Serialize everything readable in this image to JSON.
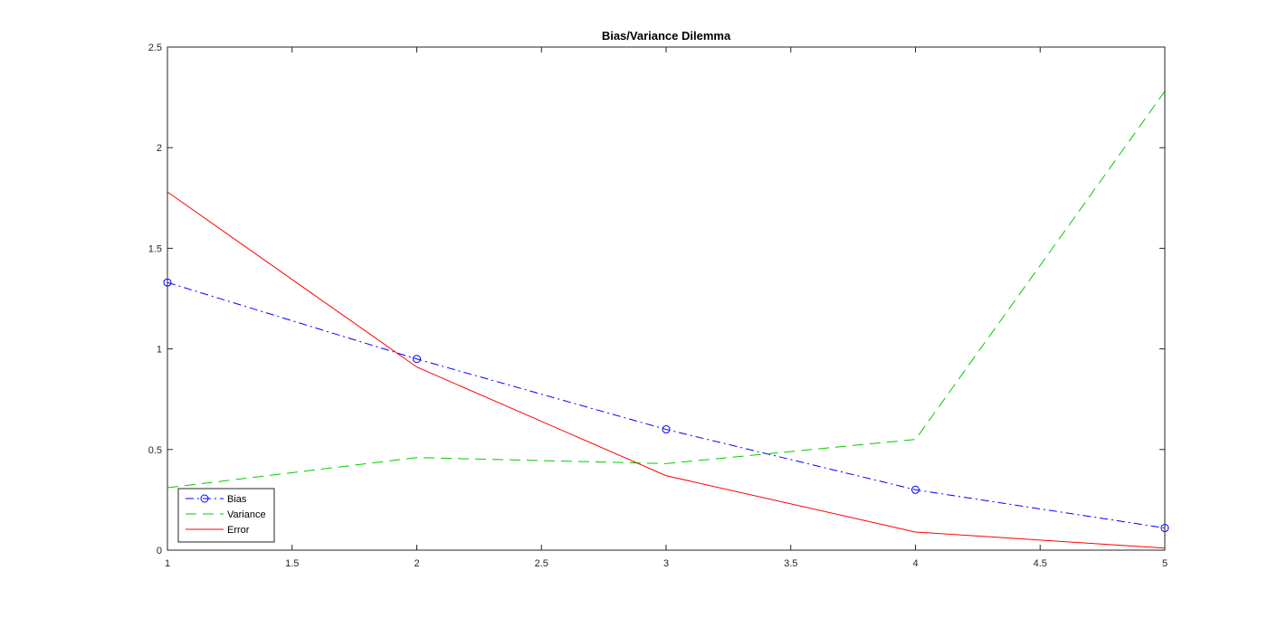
{
  "chart_data": {
    "type": "line",
    "title": "Bias/Variance Dilemma",
    "xlabel": "",
    "ylabel": "",
    "xlim": [
      1,
      5
    ],
    "ylim": [
      0,
      2.5
    ],
    "x_ticks": [
      1,
      1.5,
      2,
      2.5,
      3,
      3.5,
      4,
      4.5,
      5
    ],
    "x_tick_labels": [
      "1",
      "1.5",
      "2",
      "2.5",
      "3",
      "3.5",
      "4",
      "4.5",
      "5"
    ],
    "y_ticks": [
      0,
      0.5,
      1,
      1.5,
      2,
      2.5
    ],
    "y_tick_labels": [
      "0",
      "0.5",
      "1",
      "1.5",
      "2",
      "2.5"
    ],
    "grid": false,
    "legend_position": "bottom-left",
    "x": [
      1,
      2,
      3,
      4,
      5
    ],
    "series": [
      {
        "name": "Bias",
        "values": [
          1.33,
          0.95,
          0.6,
          0.3,
          0.11
        ],
        "color": "#0000ff",
        "dash": "dash-dot",
        "marker": "circle"
      },
      {
        "name": "Variance",
        "values": [
          0.31,
          0.46,
          0.43,
          0.55,
          2.28
        ],
        "color": "#00cc00",
        "dash": "dashed",
        "marker": "none"
      },
      {
        "name": "Error",
        "values": [
          1.78,
          0.91,
          0.37,
          0.09,
          0.01
        ],
        "color": "#ff0000",
        "dash": "solid",
        "marker": "none"
      }
    ]
  }
}
